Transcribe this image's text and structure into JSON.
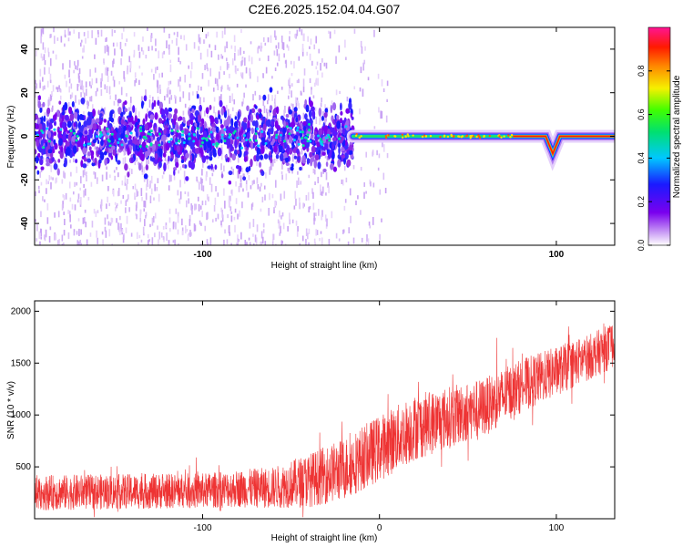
{
  "title": "C2E6.2025.152.04.04.G07",
  "chart_data": [
    {
      "type": "heatmap",
      "xlabel": "Height of straight line (km)",
      "ylabel": "Frequency (Hz)",
      "xlim": [
        -195,
        133
      ],
      "ylim": [
        -50,
        50
      ],
      "xticks": [
        -100,
        0,
        100
      ],
      "xtick_labels": [
        "-100",
        "",
        "100"
      ],
      "yticks": [
        -40,
        -20,
        0,
        20,
        40
      ],
      "ytick_labels": [
        "-40",
        "-20",
        "0",
        "20",
        "40"
      ],
      "colorbar": {
        "label": "Normalized spectral amplitude",
        "ticks": [
          0.0,
          0.2,
          0.4,
          0.6,
          0.8
        ],
        "tick_labels": [
          "0.0",
          "0.2",
          "0.4",
          "0.6",
          "0.8"
        ],
        "range": [
          0,
          1
        ],
        "colormap": "rainbow (white → violet → blue → cyan → green → yellow → orange → red → magenta)"
      },
      "features": {
        "carrier_line_frequency_hz": 0,
        "diffuse_noise_region_km": [
          -195,
          -15
        ],
        "sharp_line_region_km": [
          -15,
          133
        ],
        "dip_near_km": 98,
        "dip_min_frequency_hz": -8
      }
    },
    {
      "type": "line",
      "xlabel": "Height of straight line (km)",
      "ylabel": "SNR (10 * v/v)",
      "xlim": [
        -195,
        133
      ],
      "ylim": [
        0,
        2100
      ],
      "xticks": [
        -100,
        0,
        100
      ],
      "xtick_labels": [
        "-100",
        "0",
        "100"
      ],
      "yticks": [
        500,
        1000,
        1500,
        2000
      ],
      "ytick_labels": [
        "500",
        "1000",
        "1500",
        "2000"
      ],
      "line_color": "#ee3333",
      "envelope": {
        "x": [
          -195,
          -150,
          -100,
          -80,
          -60,
          -40,
          -20,
          0,
          20,
          40,
          60,
          80,
          100,
          120,
          133
        ],
        "mean": [
          250,
          260,
          270,
          290,
          300,
          370,
          480,
          680,
          880,
          980,
          1080,
          1280,
          1420,
          1570,
          1680
        ],
        "spread": [
          170,
          170,
          170,
          180,
          200,
          260,
          300,
          320,
          320,
          300,
          280,
          260,
          240,
          220,
          220
        ]
      }
    }
  ]
}
